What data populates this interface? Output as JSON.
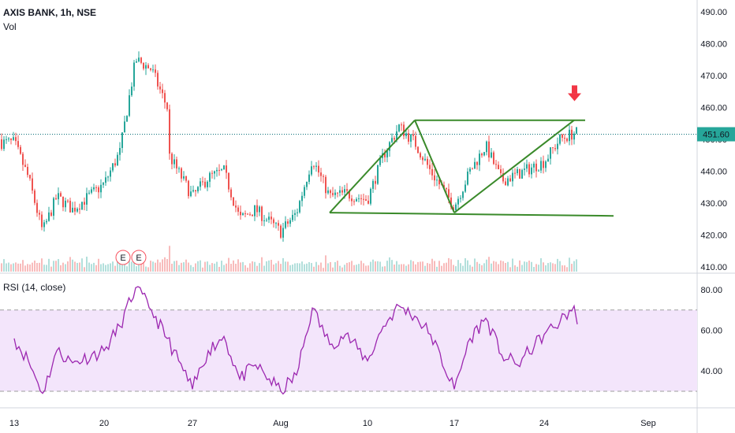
{
  "header": {
    "symbol": "AXIS BANK, 1h, NSE",
    "volume_label": "Vol"
  },
  "rsi_header": {
    "label": "RSI (14, close)"
  },
  "earnings_marker": "E",
  "colors": {
    "up": "#26a69a",
    "down": "#ef5350",
    "vol_up": "#b2dfdb",
    "vol_down": "#f8bbbb",
    "pattern": "#3a8a2a",
    "rsi_line": "#9c27b0",
    "rsi_band": "#f3e5fb",
    "price_line": "#0a6e78",
    "arrow": "#f23645"
  },
  "chart_data": [
    {
      "type": "candlestick",
      "title": "AXIS BANK, 1h, NSE",
      "ylim": [
        410,
        490
      ],
      "y_ticks": [
        "490.00",
        "480.00",
        "470.00",
        "460.00",
        "450.00",
        "440.00",
        "430.00",
        "420.00",
        "410.00"
      ],
      "last_price": "451.60",
      "x_ticks": [
        "13",
        "20",
        "27",
        "Aug",
        "10",
        "17",
        "24",
        "Sep"
      ],
      "approx_close_path": [
        {
          "x": "Jul 13",
          "y": 449
        },
        {
          "x": "Jul 14",
          "y": 438
        },
        {
          "x": "Jul 15",
          "y": 421
        },
        {
          "x": "Jul 16",
          "y": 432
        },
        {
          "x": "Jul 17",
          "y": 428
        },
        {
          "x": "Jul 20",
          "y": 436
        },
        {
          "x": "Jul 21",
          "y": 446
        },
        {
          "x": "Jul 22",
          "y": 475
        },
        {
          "x": "Jul 23",
          "y": 472
        },
        {
          "x": "Jul 24",
          "y": 460
        },
        {
          "x": "Jul 24",
          "y": 446
        },
        {
          "x": "Jul 27",
          "y": 432
        },
        {
          "x": "Jul 28",
          "y": 438
        },
        {
          "x": "Jul 29",
          "y": 440
        },
        {
          "x": "Jul 30",
          "y": 425
        },
        {
          "x": "Jul 31",
          "y": 428
        },
        {
          "x": "Aug 3",
          "y": 421
        },
        {
          "x": "Aug 4",
          "y": 427
        },
        {
          "x": "Aug 5",
          "y": 444
        },
        {
          "x": "Aug 6",
          "y": 432
        },
        {
          "x": "Aug 7",
          "y": 433
        },
        {
          "x": "Aug 10",
          "y": 431
        },
        {
          "x": "Aug 11",
          "y": 445
        },
        {
          "x": "Aug 12",
          "y": 454
        },
        {
          "x": "Aug 13",
          "y": 449
        },
        {
          "x": "Aug 14",
          "y": 440
        },
        {
          "x": "Aug 17",
          "y": 429
        },
        {
          "x": "Aug 18",
          "y": 440
        },
        {
          "x": "Aug 19",
          "y": 448
        },
        {
          "x": "Aug 20",
          "y": 437
        },
        {
          "x": "Aug 21",
          "y": 439
        },
        {
          "x": "Aug 24",
          "y": 443
        },
        {
          "x": "Aug 25",
          "y": 450
        },
        {
          "x": "Aug 26",
          "y": 452
        }
      ],
      "annotations": [
        {
          "type": "trendline",
          "from": {
            "x": "Aug 6",
            "y": 427
          },
          "to": {
            "x": "Aug 13",
            "y": 456
          }
        },
        {
          "type": "trendline",
          "from": {
            "x": "Aug 13",
            "y": 456
          },
          "to": {
            "x": "Aug 17",
            "y": 427
          }
        },
        {
          "type": "trendline",
          "from": {
            "x": "Aug 17",
            "y": 427
          },
          "to": {
            "x": "Aug 26",
            "y": 456
          }
        },
        {
          "type": "trendline",
          "from": {
            "x": "Aug 13",
            "y": 456
          },
          "to": {
            "x": "Aug 27",
            "y": 456
          }
        },
        {
          "type": "trendline",
          "from": {
            "x": "Aug 6",
            "y": 427
          },
          "to": {
            "x": "Aug 31",
            "y": 426
          }
        },
        {
          "type": "arrow-down",
          "at": {
            "x": "Aug 26",
            "y": 461
          }
        }
      ]
    },
    {
      "type": "line",
      "title": "RSI (14, close)",
      "ylim": [
        26,
        86
      ],
      "y_ticks": [
        "80.00",
        "60.00",
        "40.00"
      ],
      "band": [
        30,
        70
      ],
      "series": [
        {
          "values": [
            {
              "x": "Jul 13",
              "y": 56
            },
            {
              "x": "Jul 14",
              "y": 45
            },
            {
              "x": "Jul 15",
              "y": 29
            },
            {
              "x": "Jul 16",
              "y": 50
            },
            {
              "x": "Jul 17",
              "y": 44
            },
            {
              "x": "Jul 20",
              "y": 50
            },
            {
              "x": "Jul 21",
              "y": 62
            },
            {
              "x": "Jul 22",
              "y": 81
            },
            {
              "x": "Jul 23",
              "y": 70
            },
            {
              "x": "Jul 24",
              "y": 56
            },
            {
              "x": "Jul 27",
              "y": 31
            },
            {
              "x": "Jul 28",
              "y": 50
            },
            {
              "x": "Jul 29",
              "y": 57
            },
            {
              "x": "Jul 30",
              "y": 36
            },
            {
              "x": "Jul 31",
              "y": 43
            },
            {
              "x": "Aug 3",
              "y": 30
            },
            {
              "x": "Aug 4",
              "y": 38
            },
            {
              "x": "Aug 5",
              "y": 71
            },
            {
              "x": "Aug 6",
              "y": 53
            },
            {
              "x": "Aug 7",
              "y": 58
            },
            {
              "x": "Aug 10",
              "y": 45
            },
            {
              "x": "Aug 11",
              "y": 62
            },
            {
              "x": "Aug 12",
              "y": 72
            },
            {
              "x": "Aug 13",
              "y": 67
            },
            {
              "x": "Aug 14",
              "y": 58
            },
            {
              "x": "Aug 17",
              "y": 31
            },
            {
              "x": "Aug 18",
              "y": 56
            },
            {
              "x": "Aug 19",
              "y": 66
            },
            {
              "x": "Aug 20",
              "y": 48
            },
            {
              "x": "Aug 21",
              "y": 43
            },
            {
              "x": "Aug 24",
              "y": 58
            },
            {
              "x": "Aug 25",
              "y": 64
            },
            {
              "x": "Aug 26",
              "y": 72
            },
            {
              "x": "Aug 26",
              "y": 63
            }
          ]
        }
      ]
    }
  ]
}
